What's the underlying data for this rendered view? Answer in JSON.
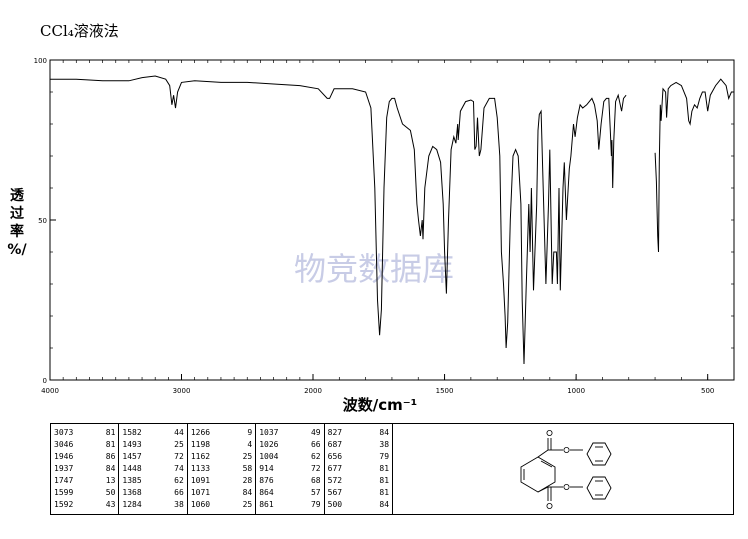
{
  "title": "CCl₄溶液法",
  "watermark": "物竞数据库",
  "chart_data": {
    "type": "line",
    "xlabel": "波数/cm⁻¹",
    "ylabel_chars": [
      "透",
      "过",
      "率",
      "%/"
    ],
    "xlim": [
      4000,
      400
    ],
    "ylim": [
      0,
      100
    ],
    "x_ticks": [
      4000,
      3000,
      2000,
      1500,
      1000,
      500
    ],
    "x_tick_labels": [
      "4000",
      "3000",
      "2000",
      "1500",
      "1000",
      "500"
    ],
    "y_ticks": [
      0,
      50,
      100
    ],
    "y_tick_labels": [
      "0",
      "50",
      "100"
    ],
    "series": [
      {
        "segments": [
          [
            [
              4000,
              94
            ],
            [
              3800,
              94
            ],
            [
              3600,
              93.5
            ],
            [
              3400,
              93.5
            ],
            [
              3300,
              94.5
            ],
            [
              3200,
              95
            ],
            [
              3120,
              94
            ],
            [
              3090,
              92
            ],
            [
              3073,
              86
            ],
            [
              3060,
              89
            ],
            [
              3046,
              85
            ],
            [
              3030,
              90
            ],
            [
              3000,
              93
            ],
            [
              2900,
              93.5
            ],
            [
              2700,
              93
            ],
            [
              2500,
              93
            ],
            [
              2300,
              92.5
            ],
            [
              2100,
              92
            ],
            [
              1980,
              91
            ],
            [
              1946,
              88
            ],
            [
              1937,
              88
            ],
            [
              1920,
              91
            ],
            [
              1850,
              91
            ],
            [
              1800,
              90
            ],
            [
              1780,
              85
            ],
            [
              1765,
              60
            ],
            [
              1755,
              25
            ],
            [
              1747,
              14
            ],
            [
              1740,
              22
            ],
            [
              1730,
              60
            ],
            [
              1720,
              82
            ],
            [
              1710,
              87
            ],
            [
              1700,
              88
            ],
            [
              1690,
              88
            ],
            [
              1680,
              85
            ],
            [
              1660,
              80
            ],
            [
              1630,
              78
            ],
            [
              1615,
              72
            ],
            [
              1605,
              55
            ],
            [
              1599,
              50
            ],
            [
              1592,
              45
            ],
            [
              1585,
              50
            ],
            [
              1582,
              44
            ],
            [
              1575,
              60
            ],
            [
              1560,
              70
            ],
            [
              1545,
              73
            ],
            [
              1530,
              72
            ],
            [
              1515,
              68
            ],
            [
              1505,
              55
            ],
            [
              1500,
              40
            ],
            [
              1493,
              27
            ],
            [
              1485,
              50
            ],
            [
              1475,
              72
            ],
            [
              1465,
              76
            ],
            [
              1457,
              74
            ],
            [
              1450,
              80
            ],
            [
              1448,
              75
            ],
            [
              1440,
              84
            ],
            [
              1420,
              87
            ],
            [
              1400,
              87.5
            ],
            [
              1390,
              87
            ],
            [
              1385,
              72
            ],
            [
              1380,
              73
            ],
            [
              1375,
              82
            ],
            [
              1368,
              70
            ],
            [
              1362,
              72
            ],
            [
              1350,
              85
            ],
            [
              1330,
              88
            ],
            [
              1310,
              88
            ],
            [
              1300,
              82
            ],
            [
              1290,
              70
            ],
            [
              1284,
              40
            ],
            [
              1276,
              30
            ],
            [
              1270,
              20
            ],
            [
              1266,
              10
            ],
            [
              1260,
              18
            ],
            [
              1250,
              50
            ],
            [
              1240,
              70
            ],
            [
              1230,
              72
            ],
            [
              1220,
              70
            ],
            [
              1210,
              55
            ],
            [
              1205,
              25
            ],
            [
              1198,
              5
            ],
            [
              1190,
              28
            ],
            [
              1180,
              55
            ],
            [
              1175,
              40
            ],
            [
              1170,
              60
            ],
            [
              1162,
              28
            ],
            [
              1150,
              55
            ],
            [
              1145,
              78
            ],
            [
              1140,
              83
            ],
            [
              1133,
              84
            ],
            [
              1125,
              60
            ],
            [
              1115,
              30
            ],
            [
              1105,
              55
            ],
            [
              1100,
              72
            ],
            [
              1091,
              30
            ],
            [
              1085,
              40
            ],
            [
              1075,
              40
            ],
            [
              1071,
              30
            ],
            [
              1065,
              60
            ],
            [
              1060,
              28
            ],
            [
              1050,
              60
            ],
            [
              1045,
              68
            ],
            [
              1037,
              50
            ],
            [
              1030,
              60
            ],
            [
              1026,
              66
            ],
            [
              1020,
              70
            ],
            [
              1010,
              80
            ],
            [
              1004,
              76
            ],
            [
              995,
              82
            ],
            [
              985,
              86
            ],
            [
              975,
              85
            ],
            [
              960,
              86
            ],
            [
              950,
              87
            ],
            [
              940,
              88
            ],
            [
              930,
              86
            ],
            [
              920,
              81
            ],
            [
              914,
              72
            ],
            [
              905,
              80
            ],
            [
              895,
              87
            ],
            [
              885,
              88
            ],
            [
              876,
              88
            ],
            [
              870,
              78
            ],
            [
              866,
              70
            ],
            [
              864,
              75
            ],
            [
              861,
              60
            ],
            [
              857,
              75
            ],
            [
              850,
              87
            ],
            [
              840,
              89
            ],
            [
              827,
              84
            ],
            [
              820,
              88
            ],
            [
              810,
              89
            ]
          ],
          [
            [
              700,
              71
            ],
            [
              695,
              62
            ],
            [
              690,
              45
            ],
            [
              687,
              40
            ],
            [
              684,
              68
            ],
            [
              680,
              86
            ],
            [
              677,
              81
            ],
            [
              672,
              88
            ],
            [
              670,
              91
            ],
            [
              660,
              90
            ],
            [
              656,
              82
            ],
            [
              650,
              91
            ],
            [
              640,
              92
            ],
            [
              620,
              93
            ],
            [
              600,
              92
            ],
            [
              580,
              88
            ],
            [
              572,
              81
            ],
            [
              567,
              80
            ],
            [
              560,
              84
            ],
            [
              550,
              86
            ],
            [
              540,
              85
            ],
            [
              530,
              88
            ],
            [
              520,
              90
            ],
            [
              510,
              90
            ],
            [
              500,
              84
            ],
            [
              490,
              89
            ],
            [
              470,
              92
            ],
            [
              450,
              94
            ],
            [
              430,
              92
            ],
            [
              420,
              88
            ],
            [
              410,
              90
            ],
            [
              400,
              90
            ]
          ]
        ]
      }
    ],
    "peak_table": [
      [
        [
          "3073",
          "81"
        ],
        [
          "3046",
          "81"
        ],
        [
          "1946",
          "86"
        ],
        [
          "1937",
          "84"
        ],
        [
          "1747",
          "13"
        ],
        [
          "1599",
          "50"
        ],
        [
          "1592",
          "43"
        ]
      ],
      [
        [
          "1582",
          "44"
        ],
        [
          "1493",
          "25"
        ],
        [
          "1457",
          "72"
        ],
        [
          "1448",
          "74"
        ],
        [
          "1385",
          "62"
        ],
        [
          "1368",
          "66"
        ],
        [
          "1284",
          "38"
        ]
      ],
      [
        [
          "1266",
          "9"
        ],
        [
          "1198",
          "4"
        ],
        [
          "1162",
          "25"
        ],
        [
          "1133",
          "58"
        ],
        [
          "1091",
          "28"
        ],
        [
          "1071",
          "84"
        ],
        [
          "1060",
          "25"
        ]
      ],
      [
        [
          "1037",
          "49"
        ],
        [
          "1026",
          "66"
        ],
        [
          "1004",
          "62"
        ],
        [
          "914",
          "72"
        ],
        [
          "876",
          "68"
        ],
        [
          "864",
          "57"
        ],
        [
          "861",
          "79"
        ]
      ],
      [
        [
          "827",
          "84"
        ],
        [
          "687",
          "38"
        ],
        [
          "656",
          "79"
        ],
        [
          "677",
          "81"
        ],
        [
          "572",
          "81"
        ],
        [
          "567",
          "81"
        ],
        [
          "500",
          "84"
        ]
      ]
    ]
  }
}
